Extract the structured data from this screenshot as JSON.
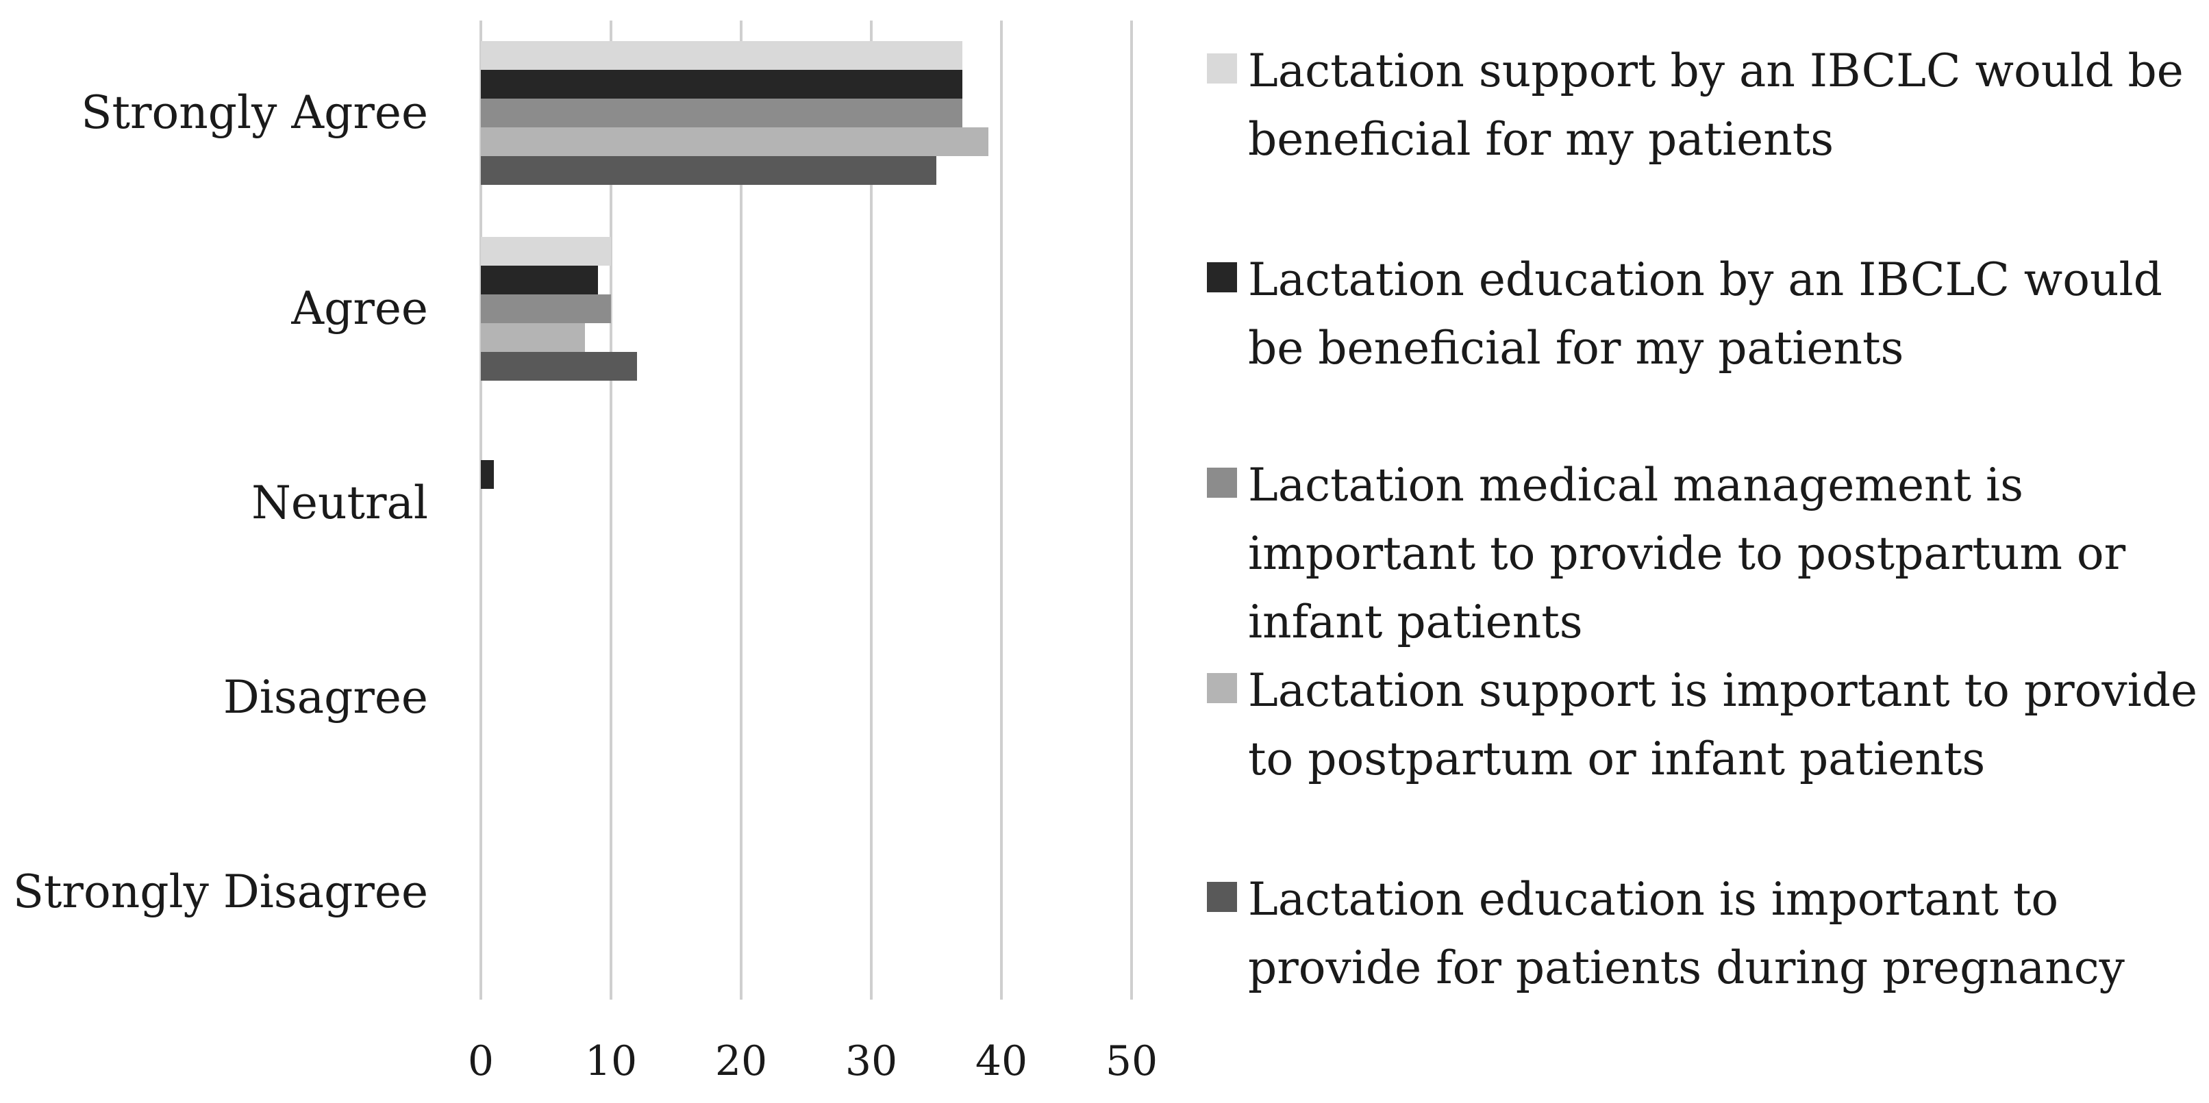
{
  "chart_data": {
    "type": "bar",
    "orientation": "horizontal",
    "title": "",
    "xlabel": "",
    "ylabel": "",
    "xlim": [
      0,
      50
    ],
    "grid": true,
    "legend_position": "right",
    "categories": [
      "Strongly Agree",
      "Agree",
      "Neutral",
      "Disagree",
      "Strongly Disagree"
    ],
    "ticks": [
      "0",
      "10",
      "20",
      "30",
      "40",
      "50"
    ],
    "series": [
      {
        "name": "Lactation support by an IBCLC would be beneficial for my patients",
        "legend_lines": [
          "Lactation support by an IBCLC would be",
          "beneficial for my patients"
        ],
        "color": "#d9d9d9",
        "values": [
          37,
          10,
          0,
          0,
          0
        ]
      },
      {
        "name": "Lactation education by an IBCLC would be beneficial for my patients",
        "legend_lines": [
          "Lactation education by an IBCLC would",
          "be beneficial for my patients"
        ],
        "color": "#262626",
        "values": [
          37,
          9,
          1,
          0,
          0
        ]
      },
      {
        "name": "Lactation medical management is important to provide to postpartum or infant patients",
        "legend_lines": [
          "Lactation medical management is",
          "important to provide to postpartum or",
          "infant patients"
        ],
        "color": "#8c8c8c",
        "values": [
          37,
          10,
          0,
          0,
          0
        ]
      },
      {
        "name": "Lactation support is important to provide to postpartum or infant patients",
        "legend_lines": [
          "Lactation support is important to provide",
          "to postpartum or infant patients"
        ],
        "color": "#b4b4b4",
        "values": [
          39,
          8,
          0,
          0,
          0
        ]
      },
      {
        "name": "Lactation education is important to provide for patients during pregnancy",
        "legend_lines": [
          "Lactation education is important to",
          "provide for patients during pregnancy"
        ],
        "color": "#595959",
        "values": [
          35,
          12,
          0,
          0,
          0
        ]
      }
    ]
  }
}
